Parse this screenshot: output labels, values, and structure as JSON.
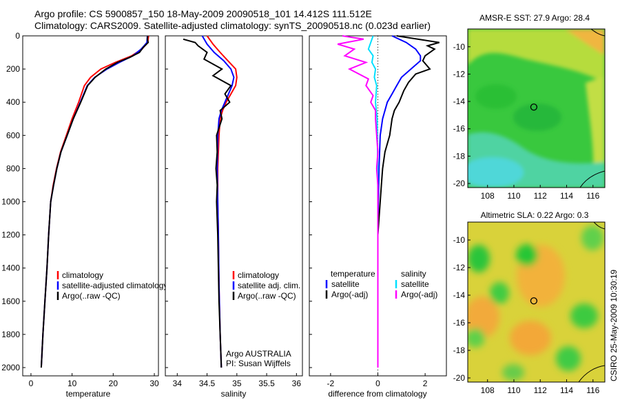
{
  "title": {
    "line1": "Argo profile: CS 5900857_150 18-May-2009 20090518_101 14.412S 111.512E",
    "line2": "Climatology: CARS2009. Satellite-adjusted climatology: synTS_20090518.nc (0.023d earlier)"
  },
  "colors": {
    "climatology": "#ff0000",
    "satellite": "#0000ff",
    "argo": "#000000",
    "cyan": "#00e0ff",
    "magenta": "#ff00ff"
  },
  "side_label": "CSIRO 25-May-2009 10:30:19",
  "chart_data": [
    {
      "type": "line",
      "id": "temperature",
      "xlabel": "temperature",
      "ylabel": "",
      "xlim": [
        -2,
        31
      ],
      "ylim": [
        2050,
        0
      ],
      "xticks": [
        0,
        10,
        20,
        30
      ],
      "yticks": [
        0,
        200,
        400,
        600,
        800,
        1000,
        1200,
        1400,
        1600,
        1800,
        2000
      ],
      "legend": [
        "climatology",
        "satellite-adjusted climatology",
        "Argo(..raw -QC)"
      ],
      "series": [
        {
          "name": "climatology",
          "color": "climatology",
          "points": [
            [
              28.6,
              0
            ],
            [
              28.4,
              40
            ],
            [
              27.0,
              80
            ],
            [
              24.5,
              120
            ],
            [
              20.5,
              160
            ],
            [
              17.0,
              200
            ],
            [
              14.5,
              250
            ],
            [
              13.0,
              300
            ],
            [
              11.6,
              400
            ],
            [
              10.0,
              500
            ],
            [
              8.6,
              600
            ],
            [
              7.2,
              700
            ],
            [
              6.2,
              800
            ],
            [
              5.4,
              900
            ],
            [
              4.8,
              1000
            ],
            [
              4.3,
              1200
            ],
            [
              3.9,
              1400
            ],
            [
              3.4,
              1600
            ],
            [
              2.9,
              1800
            ],
            [
              2.5,
              2000
            ]
          ]
        },
        {
          "name": "satellite-adjusted climatology",
          "color": "satellite",
          "points": [
            [
              28.3,
              0
            ],
            [
              28.2,
              40
            ],
            [
              26.8,
              80
            ],
            [
              24.8,
              120
            ],
            [
              21.5,
              160
            ],
            [
              18.5,
              200
            ],
            [
              15.5,
              250
            ],
            [
              13.7,
              300
            ],
            [
              12.0,
              400
            ],
            [
              10.3,
              500
            ],
            [
              8.8,
              600
            ],
            [
              7.3,
              700
            ],
            [
              6.3,
              800
            ],
            [
              5.5,
              900
            ],
            [
              4.8,
              1000
            ],
            [
              4.3,
              1200
            ],
            [
              3.9,
              1400
            ],
            [
              3.4,
              1600
            ],
            [
              2.9,
              1800
            ],
            [
              2.5,
              2000
            ]
          ]
        },
        {
          "name": "Argo(..raw -QC)",
          "color": "argo",
          "points": [
            [
              28.4,
              0
            ],
            [
              28.3,
              20
            ],
            [
              28.5,
              40
            ],
            [
              27.3,
              70
            ],
            [
              26.4,
              100
            ],
            [
              24.0,
              130
            ],
            [
              21.0,
              160
            ],
            [
              18.2,
              200
            ],
            [
              15.6,
              250
            ],
            [
              13.8,
              300
            ],
            [
              12.1,
              400
            ],
            [
              10.3,
              500
            ],
            [
              8.8,
              600
            ],
            [
              7.3,
              700
            ],
            [
              6.3,
              800
            ],
            [
              5.5,
              900
            ],
            [
              4.8,
              1000
            ],
            [
              4.3,
              1200
            ],
            [
              3.9,
              1400
            ],
            [
              3.4,
              1600
            ],
            [
              2.9,
              1800
            ],
            [
              2.5,
              2000
            ]
          ]
        }
      ]
    },
    {
      "type": "line",
      "id": "salinity",
      "xlabel": "salinity",
      "ylabel": "",
      "xlim": [
        33.8,
        36.1
      ],
      "ylim": [
        2050,
        0
      ],
      "xticks": [
        34,
        34.5,
        35,
        35.5,
        36
      ],
      "legend": [
        "climatology",
        "satellite adj. clim.",
        "Argo(..raw -QC)"
      ],
      "annotation": [
        "Argo AUSTRALIA",
        "PI: Susan Wijffels"
      ],
      "series": [
        {
          "name": "climatology",
          "color": "climatology",
          "points": [
            [
              34.5,
              0
            ],
            [
              34.6,
              50
            ],
            [
              34.72,
              100
            ],
            [
              34.85,
              150
            ],
            [
              34.98,
              200
            ],
            [
              35.0,
              250
            ],
            [
              34.98,
              300
            ],
            [
              34.9,
              350
            ],
            [
              34.82,
              400
            ],
            [
              34.76,
              450
            ],
            [
              34.72,
              500
            ],
            [
              34.7,
              600
            ],
            [
              34.68,
              800
            ],
            [
              34.68,
              1000
            ],
            [
              34.69,
              1200
            ],
            [
              34.7,
              1500
            ],
            [
              34.72,
              1800
            ],
            [
              34.74,
              2000
            ]
          ]
        },
        {
          "name": "satellite adj. clim.",
          "color": "satellite",
          "points": [
            [
              34.42,
              0
            ],
            [
              34.5,
              50
            ],
            [
              34.62,
              100
            ],
            [
              34.78,
              150
            ],
            [
              34.9,
              200
            ],
            [
              34.95,
              250
            ],
            [
              34.92,
              300
            ],
            [
              34.86,
              350
            ],
            [
              34.8,
              400
            ],
            [
              34.74,
              450
            ],
            [
              34.7,
              500
            ],
            [
              34.68,
              600
            ],
            [
              34.67,
              800
            ],
            [
              34.68,
              1000
            ],
            [
              34.69,
              1200
            ],
            [
              34.7,
              1500
            ],
            [
              34.72,
              1800
            ],
            [
              34.74,
              2000
            ]
          ]
        },
        {
          "name": "Argo(..raw -QC)",
          "color": "argo",
          "points": [
            [
              34.1,
              20
            ],
            [
              34.3,
              40
            ],
            [
              34.35,
              60
            ],
            [
              34.5,
              100
            ],
            [
              34.45,
              140
            ],
            [
              34.75,
              200
            ],
            [
              34.6,
              240
            ],
            [
              34.9,
              300
            ],
            [
              34.8,
              350
            ],
            [
              34.88,
              400
            ],
            [
              34.72,
              450
            ],
            [
              34.75,
              500
            ],
            [
              34.66,
              600
            ],
            [
              34.67,
              700
            ],
            [
              34.65,
              800
            ],
            [
              34.67,
              900
            ],
            [
              34.66,
              1000
            ],
            [
              34.68,
              1200
            ],
            [
              34.69,
              1400
            ],
            [
              34.7,
              1600
            ],
            [
              34.72,
              1800
            ],
            [
              34.74,
              2000
            ]
          ]
        }
      ]
    },
    {
      "type": "line",
      "id": "difference",
      "xlabel": "difference from climatology",
      "ylabel": "",
      "xlim": [
        -2.9,
        2.9
      ],
      "ylim": [
        2050,
        0
      ],
      "xticks": [
        -2,
        0,
        2
      ],
      "legend_left": [
        "temperature",
        "satellite",
        "Argo(-adj)"
      ],
      "legend_right": [
        "salinity",
        "satellite",
        "Argo(-adj)"
      ],
      "series": [
        {
          "name": "temperature satellite",
          "color": "satellite",
          "points": [
            [
              0.6,
              0
            ],
            [
              1.2,
              40
            ],
            [
              1.6,
              80
            ],
            [
              1.8,
              120
            ],
            [
              1.8,
              150
            ],
            [
              1.4,
              200
            ],
            [
              1.0,
              250
            ],
            [
              0.8,
              300
            ],
            [
              0.6,
              350
            ],
            [
              0.4,
              400
            ],
            [
              0.2,
              500
            ],
            [
              0.1,
              600
            ],
            [
              0.05,
              800
            ],
            [
              0.02,
              1000
            ],
            [
              0.0,
              1200
            ],
            [
              0.0,
              1400
            ],
            [
              0.0,
              1600
            ],
            [
              0.0,
              1800
            ],
            [
              0.0,
              2000
            ]
          ]
        },
        {
          "name": "temperature Argo(-adj)",
          "color": "argo",
          "points": [
            [
              0.8,
              0
            ],
            [
              2.6,
              40
            ],
            [
              2.1,
              60
            ],
            [
              2.4,
              80
            ],
            [
              2.0,
              120
            ],
            [
              1.9,
              150
            ],
            [
              2.2,
              200
            ],
            [
              1.6,
              230
            ],
            [
              1.3,
              280
            ],
            [
              1.1,
              330
            ],
            [
              0.9,
              400
            ],
            [
              0.7,
              450
            ],
            [
              0.6,
              500
            ],
            [
              0.5,
              600
            ],
            [
              0.3,
              700
            ],
            [
              0.2,
              800
            ],
            [
              0.15,
              900
            ],
            [
              0.1,
              1000
            ],
            [
              0.05,
              1100
            ],
            [
              0.0,
              1200
            ],
            [
              0.0,
              1400
            ],
            [
              0.0,
              1600
            ],
            [
              0.0,
              1800
            ],
            [
              0.0,
              2000
            ]
          ]
        },
        {
          "name": "salinity satellite",
          "color": "cyan",
          "points": [
            [
              -0.2,
              0
            ],
            [
              -0.3,
              40
            ],
            [
              -0.4,
              80
            ],
            [
              -0.2,
              120
            ],
            [
              -0.25,
              160
            ],
            [
              -0.1,
              200
            ],
            [
              -0.15,
              250
            ],
            [
              -0.05,
              300
            ],
            [
              -0.1,
              400
            ],
            [
              -0.03,
              500
            ],
            [
              -0.02,
              600
            ],
            [
              -0.01,
              800
            ],
            [
              0.0,
              1000
            ],
            [
              0.0,
              1200
            ],
            [
              0.0,
              1400
            ],
            [
              0.0,
              1600
            ],
            [
              0.0,
              1800
            ],
            [
              0.0,
              2000
            ]
          ]
        },
        {
          "name": "salinity Argo(-adj)",
          "color": "magenta",
          "points": [
            [
              -1.5,
              0
            ],
            [
              -0.6,
              20
            ],
            [
              -1.7,
              50
            ],
            [
              -1.0,
              80
            ],
            [
              -1.4,
              120
            ],
            [
              -0.5,
              160
            ],
            [
              -1.2,
              200
            ],
            [
              -0.4,
              260
            ],
            [
              -0.5,
              300
            ],
            [
              -0.2,
              360
            ],
            [
              -0.3,
              400
            ],
            [
              -0.1,
              450
            ],
            [
              -0.1,
              500
            ],
            [
              -0.05,
              600
            ],
            [
              0.0,
              700
            ],
            [
              -0.05,
              800
            ],
            [
              0.0,
              900
            ],
            [
              0.0,
              1000
            ],
            [
              0.0,
              1200
            ],
            [
              0.0,
              1400
            ],
            [
              0.0,
              1600
            ],
            [
              0.0,
              1800
            ],
            [
              0.0,
              2000
            ]
          ]
        }
      ]
    },
    {
      "type": "heatmap",
      "id": "sst_map",
      "title": "AMSR-E SST: 27.9 Argo: 28.4",
      "xlim": [
        106.5,
        116.9
      ],
      "ylim": [
        -20.3,
        -8.7
      ],
      "xticks": [
        108,
        110,
        112,
        114,
        116
      ],
      "yticks": [
        -10,
        -12,
        -14,
        -16,
        -18,
        -20
      ],
      "marker": [
        111.512,
        -14.412
      ]
    },
    {
      "type": "heatmap",
      "id": "sla_map",
      "title": "Altimetric SLA: 0.22 Argo: 0.3",
      "xlim": [
        106.5,
        116.9
      ],
      "ylim": [
        -20.3,
        -8.7
      ],
      "xticks": [
        108,
        110,
        112,
        114,
        116
      ],
      "yticks": [
        -10,
        -12,
        -14,
        -16,
        -18,
        -20
      ],
      "marker": [
        111.512,
        -14.412
      ]
    }
  ]
}
